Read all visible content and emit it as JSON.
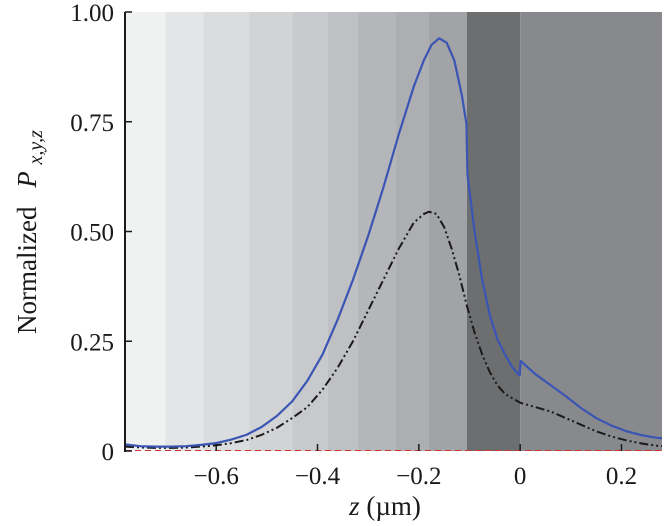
{
  "chart_data": {
    "type": "line",
    "title": "",
    "xlabel": {
      "var": "z",
      "unit": "(µm)"
    },
    "ylabel": {
      "prefix": "Normalized",
      "var": "P",
      "subscript": "x,y,z"
    },
    "xlim": [
      -0.78,
      0.28
    ],
    "ylim": [
      0,
      1.0
    ],
    "x_ticks": [
      {
        "value": -0.6,
        "label": "−0.6"
      },
      {
        "value": -0.4,
        "label": "−0.4"
      },
      {
        "value": -0.2,
        "label": "−0.2"
      },
      {
        "value": 0,
        "label": "0"
      },
      {
        "value": 0.2,
        "label": "0.2"
      }
    ],
    "y_ticks": [
      {
        "value": 0,
        "label": "0"
      },
      {
        "value": 0.25,
        "label": "0.25"
      },
      {
        "value": 0.5,
        "label": "0.50"
      },
      {
        "value": 0.75,
        "label": "0.75"
      },
      {
        "value": 1.0,
        "label": "1.00"
      }
    ],
    "background_bands": [
      {
        "x0": -0.78,
        "x1": -0.7,
        "color": "#f0f1f1"
      },
      {
        "x0": -0.7,
        "x1": -0.625,
        "color": "#e4e5e6"
      },
      {
        "x0": -0.625,
        "x1": -0.535,
        "color": "#dbdcdd"
      },
      {
        "x0": -0.535,
        "x1": -0.45,
        "color": "#d2d3d5"
      },
      {
        "x0": -0.45,
        "x1": -0.38,
        "color": "#c8c9cc"
      },
      {
        "x0": -0.38,
        "x1": -0.32,
        "color": "#bfc0c3"
      },
      {
        "x0": -0.32,
        "x1": -0.245,
        "color": "#b5b6b9"
      },
      {
        "x0": -0.245,
        "x1": -0.18,
        "color": "#adaeb1"
      },
      {
        "x0": -0.18,
        "x1": -0.105,
        "color": "#a2a3a6"
      },
      {
        "x0": -0.105,
        "x1": 0,
        "color": "#6d6e70"
      },
      {
        "x0": 0,
        "x1": 0.28,
        "color": "#88898c"
      }
    ],
    "series": [
      {
        "color": "#3a55b4",
        "dash": "solid",
        "x": [
          -0.78,
          -0.75,
          -0.72,
          -0.69,
          -0.66,
          -0.63,
          -0.6,
          -0.57,
          -0.54,
          -0.51,
          -0.48,
          -0.45,
          -0.42,
          -0.39,
          -0.36,
          -0.33,
          -0.3,
          -0.27,
          -0.24,
          -0.21,
          -0.19,
          -0.175,
          -0.16,
          -0.145,
          -0.13,
          -0.115,
          -0.106,
          -0.104,
          -0.09,
          -0.075,
          -0.06,
          -0.045,
          -0.03,
          -0.015,
          -0.001,
          0.001,
          0.03,
          0.06,
          0.09,
          0.12,
          0.15,
          0.18,
          0.21,
          0.24,
          0.27,
          0.28
        ],
        "y": [
          0.015,
          0.011,
          0.01,
          0.01,
          0.011,
          0.014,
          0.018,
          0.026,
          0.037,
          0.055,
          0.08,
          0.113,
          0.16,
          0.22,
          0.3,
          0.39,
          0.49,
          0.6,
          0.72,
          0.83,
          0.89,
          0.925,
          0.94,
          0.93,
          0.89,
          0.81,
          0.745,
          0.63,
          0.5,
          0.39,
          0.31,
          0.255,
          0.22,
          0.19,
          0.172,
          0.205,
          0.175,
          0.15,
          0.125,
          0.098,
          0.075,
          0.058,
          0.045,
          0.036,
          0.03,
          0.029
        ]
      },
      {
        "color": "#1a1a1a",
        "dash": "dash-dot-dot",
        "x": [
          -0.78,
          -0.75,
          -0.72,
          -0.69,
          -0.66,
          -0.63,
          -0.6,
          -0.57,
          -0.54,
          -0.51,
          -0.48,
          -0.45,
          -0.42,
          -0.39,
          -0.36,
          -0.33,
          -0.3,
          -0.27,
          -0.24,
          -0.21,
          -0.19,
          -0.18,
          -0.165,
          -0.15,
          -0.135,
          -0.12,
          -0.105,
          -0.09,
          -0.075,
          -0.06,
          -0.045,
          -0.03,
          -0.015,
          0,
          0.03,
          0.06,
          0.09,
          0.12,
          0.15,
          0.18,
          0.21,
          0.24,
          0.27,
          0.28
        ],
        "y": [
          0.01,
          0.008,
          0.007,
          0.007,
          0.008,
          0.01,
          0.013,
          0.018,
          0.025,
          0.037,
          0.053,
          0.075,
          0.1,
          0.14,
          0.19,
          0.25,
          0.32,
          0.39,
          0.46,
          0.52,
          0.54,
          0.545,
          0.54,
          0.51,
          0.46,
          0.4,
          0.33,
          0.27,
          0.22,
          0.18,
          0.15,
          0.13,
          0.12,
          0.11,
          0.1,
          0.09,
          0.075,
          0.06,
          0.045,
          0.033,
          0.024,
          0.017,
          0.012,
          0.011
        ]
      },
      {
        "color": "#cc3333",
        "dash": "dashed",
        "x": [
          -0.78,
          0.28
        ],
        "y": [
          0.0,
          0.0
        ]
      }
    ]
  }
}
